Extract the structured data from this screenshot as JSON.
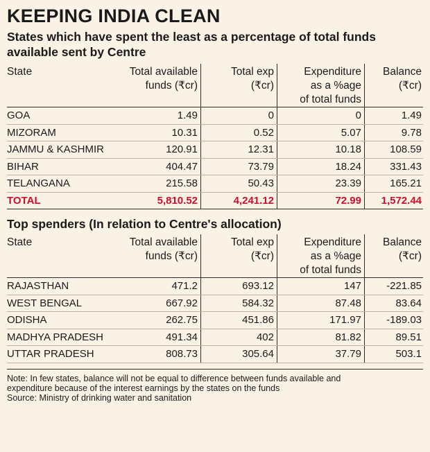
{
  "title": "KEEPING INDIA CLEAN",
  "subtitle": "States which have spent the least as a percentage of total funds available sent by Centre",
  "headers": {
    "state": "State",
    "funds_l1": "Total available",
    "funds_l2": "funds (₹cr)",
    "exp_l1": "Total exp",
    "exp_l2": "(₹cr)",
    "pct_l1": "Expenditure",
    "pct_l2": "as a %age",
    "pct_l3": "of total funds",
    "bal_l1": "Balance",
    "bal_l2": "(₹cr)"
  },
  "section2_title": "Top spenders (In relation to Centre's allocation)",
  "note_lines": [
    "Note: In few states, balance will not be equal to difference between funds available and",
    "expenditure because of the interest earnings by the states on the funds",
    "Source: Ministry of drinking water and sanitation"
  ],
  "chart_data": [
    {
      "type": "table",
      "title": "States which have spent the least as a percentage of total funds available sent by Centre",
      "columns": [
        "State",
        "Total available funds (₹cr)",
        "Total exp (₹cr)",
        "Expenditure as a %age of total funds",
        "Balance (₹cr)"
      ],
      "rows": [
        [
          "GOA",
          "1.49",
          "0",
          "0",
          "1.49"
        ],
        [
          "MIZORAM",
          "10.31",
          "0.52",
          "5.07",
          "9.78"
        ],
        [
          "JAMMU & KASHMIR",
          "120.91",
          "12.31",
          "10.18",
          "108.59"
        ],
        [
          "BIHAR",
          "404.47",
          "73.79",
          "18.24",
          "331.43"
        ],
        [
          "TELANGANA",
          "215.58",
          "50.43",
          "23.39",
          "165.21"
        ]
      ],
      "total": [
        "TOTAL",
        "5,810.52",
        "4,241.12",
        "72.99",
        "1,572.44"
      ]
    },
    {
      "type": "table",
      "title": "Top spenders (In relation to Centre's allocation)",
      "columns": [
        "State",
        "Total available funds (₹cr)",
        "Total exp (₹cr)",
        "Expenditure as a %age of total funds",
        "Balance (₹cr)"
      ],
      "rows": [
        [
          "RAJASTHAN",
          "471.2",
          "693.12",
          "147",
          "-221.85"
        ],
        [
          "WEST BENGAL",
          "667.92",
          "584.32",
          "87.48",
          "83.64"
        ],
        [
          "ODISHA",
          "262.75",
          "451.86",
          "171.97",
          "-189.03"
        ],
        [
          "MADHYA PRADESH",
          "491.34",
          "402",
          "81.82",
          "89.51"
        ],
        [
          "UTTAR PRADESH",
          "808.73",
          "305.64",
          "37.79",
          "503.1"
        ]
      ]
    }
  ]
}
